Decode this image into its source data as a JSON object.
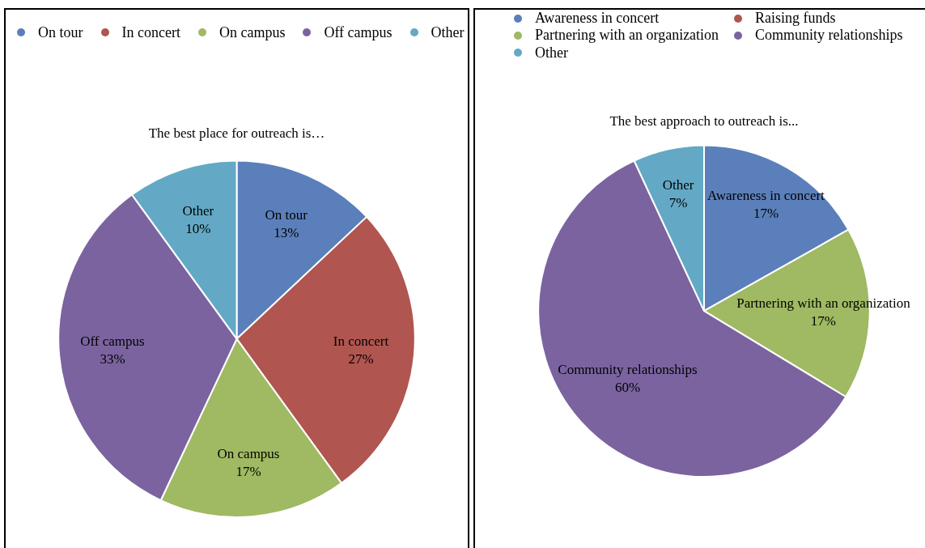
{
  "chart_data": [
    {
      "type": "pie",
      "title": "The best place for outreach is…",
      "categories": [
        "On tour",
        "In concert",
        "On campus",
        "Off campus",
        "Other"
      ],
      "values": [
        13,
        27,
        17,
        33,
        10
      ],
      "value_labels": [
        "13%",
        "27%",
        "17%",
        "33%",
        "10%"
      ],
      "colors": [
        "#5b7fba",
        "#b05550",
        "#a0b963",
        "#7b63a0",
        "#63a9c5"
      ],
      "legend": "top"
    },
    {
      "type": "pie",
      "title": "The best approach to outreach is...",
      "categories": [
        "Awareness in concert",
        "Raising funds",
        "Partnering with an organization",
        "Community relationships",
        "Other"
      ],
      "values": [
        17,
        0,
        17,
        60,
        7
      ],
      "value_labels": [
        "17%",
        null,
        "17%",
        "60%",
        "7%"
      ],
      "colors": [
        "#5b7fba",
        "#b05550",
        "#a0b963",
        "#7b63a0",
        "#63a9c5"
      ],
      "legend": "top"
    }
  ]
}
